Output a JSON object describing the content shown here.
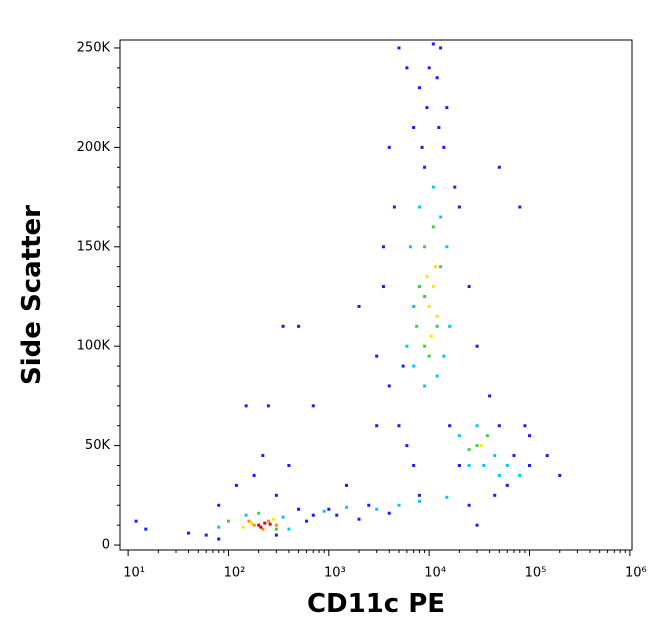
{
  "chart_data": {
    "type": "scatter",
    "x_label": "CD11c PE",
    "y_label": "Side Scatter",
    "x_log": true,
    "xlim": [
      8.3,
      1050000
    ],
    "ylim": [
      -2500,
      254000
    ],
    "xticks": [
      {
        "value": 10,
        "label": "10¹"
      },
      {
        "value": 100,
        "label": "10²"
      },
      {
        "value": 1000,
        "label": "10³"
      },
      {
        "value": 10000,
        "label": "10⁴"
      },
      {
        "value": 100000,
        "label": "10⁵"
      },
      {
        "value": 1000000,
        "label": "10⁶"
      }
    ],
    "yticks": [
      0,
      {
        "value": 50000,
        "label": "50K"
      },
      {
        "value": 100000,
        "label": "100K"
      },
      {
        "value": 150000,
        "label": "150K"
      },
      {
        "value": 200000,
        "label": "200K"
      },
      {
        "value": 250000,
        "label": "250K"
      }
    ],
    "series": [
      {
        "color": "#1a1aff",
        "x": [
          12,
          15,
          40,
          60,
          80,
          120,
          300,
          400,
          250,
          500,
          700,
          150,
          350,
          1500,
          3000,
          2000,
          3500,
          4000,
          5000,
          6000,
          8000,
          13000,
          15000,
          20000,
          25000,
          30000,
          50000,
          80000,
          90000,
          100000,
          150000,
          200000,
          60000,
          3000,
          3500,
          4000,
          5000,
          6000,
          7000,
          2500,
          1000,
          700,
          30000,
          40000,
          45000,
          7000,
          9000,
          14000,
          18000,
          4500,
          11000,
          10000,
          12000,
          9500,
          8500,
          12500,
          16000,
          5500,
          20000,
          100000,
          70000,
          500,
          300,
          80,
          600,
          1200,
          2000,
          4000,
          8000,
          25000,
          50000,
          220,
          180
        ],
        "y": [
          12000,
          8000,
          6000,
          5000,
          20000,
          30000,
          25000,
          40000,
          70000,
          110000,
          70000,
          70000,
          110000,
          30000,
          60000,
          120000,
          150000,
          200000,
          250000,
          240000,
          230000,
          250000,
          220000,
          170000,
          130000,
          100000,
          190000,
          170000,
          60000,
          40000,
          45000,
          35000,
          30000,
          95000,
          130000,
          80000,
          60000,
          50000,
          40000,
          20000,
          18000,
          15000,
          10000,
          75000,
          25000,
          210000,
          190000,
          200000,
          180000,
          170000,
          252000,
          240000,
          235000,
          220000,
          200000,
          210000,
          60000,
          90000,
          40000,
          55000,
          45000,
          18000,
          5000,
          3000,
          12000,
          15000,
          13000,
          16000,
          25000,
          20000,
          60000,
          45000,
          35000
        ]
      },
      {
        "color": "#00c8ff",
        "x": [
          150,
          350,
          80,
          400,
          900,
          1500,
          3000,
          5000,
          8000,
          15000,
          6000,
          7000,
          9000,
          12000,
          14000,
          15000,
          6500,
          8000,
          11000,
          13000,
          7000,
          16000,
          25000,
          45000,
          50000,
          30000,
          35000,
          60000,
          80000,
          20000
        ],
        "y": [
          15000,
          14000,
          9000,
          8000,
          17000,
          19000,
          18000,
          20000,
          22000,
          24000,
          100000,
          90000,
          80000,
          85000,
          95000,
          150000,
          150000,
          170000,
          180000,
          165000,
          120000,
          110000,
          40000,
          45000,
          35000,
          60000,
          40000,
          40000,
          35000,
          55000
        ]
      },
      {
        "color": "#3cd23c",
        "x": [
          9000,
          11000,
          8000,
          13000,
          9000,
          12000,
          10000,
          7500,
          30000,
          38000,
          25000,
          100,
          300,
          200,
          9000
        ],
        "y": [
          150000,
          160000,
          130000,
          140000,
          100000,
          110000,
          95000,
          110000,
          50000,
          55000,
          48000,
          12000,
          8000,
          16000,
          125000
        ]
      },
      {
        "color": "#ffe600",
        "x": [
          10000,
          11000,
          12000,
          10500,
          11500,
          9500,
          170,
          280,
          140,
          33000
        ],
        "y": [
          120000,
          130000,
          115000,
          105000,
          140000,
          135000,
          11000,
          13000,
          9000,
          50000
        ]
      },
      {
        "color": "#ff8c00",
        "x": [
          180,
          250,
          220,
          300,
          160
        ],
        "y": [
          10000,
          12000,
          8000,
          10000,
          12000
        ]
      },
      {
        "color": "#e60000",
        "x": [
          200,
          230,
          210,
          260
        ],
        "y": [
          10000,
          11000,
          9000,
          10500
        ]
      }
    ]
  }
}
